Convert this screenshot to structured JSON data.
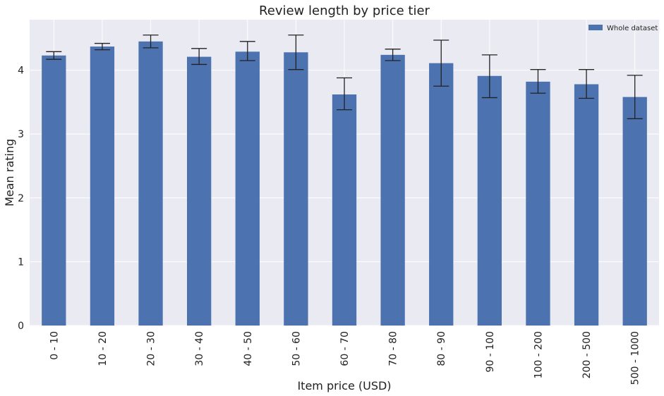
{
  "chart_data": {
    "type": "bar",
    "title": "Review length by price tier",
    "xlabel": "Item price (USD)",
    "ylabel": "Mean rating",
    "categories": [
      "0 - 10",
      "10 - 20",
      "20 - 30",
      "30 - 40",
      "40 - 50",
      "50 - 60",
      "60 - 70",
      "70 - 80",
      "80 - 90",
      "90 - 100",
      "100 - 200",
      "200 - 500",
      "500 - 1000"
    ],
    "series": [
      {
        "name": "Whole dataset",
        "values": [
          4.23,
          4.37,
          4.45,
          4.21,
          4.29,
          4.28,
          3.62,
          4.24,
          4.11,
          3.91,
          3.82,
          3.78,
          3.58
        ],
        "error_low": [
          4.17,
          4.32,
          4.35,
          4.09,
          4.15,
          4.01,
          3.38,
          4.15,
          3.75,
          3.57,
          3.64,
          3.56,
          3.24
        ],
        "error_high": [
          4.29,
          4.42,
          4.55,
          4.34,
          4.45,
          4.55,
          3.88,
          4.33,
          4.47,
          4.24,
          4.01,
          4.01,
          3.92
        ],
        "color": "#4c72b0"
      }
    ],
    "ylim": [
      0,
      4.8
    ],
    "yticks": [
      0,
      1,
      2,
      3,
      4
    ],
    "grid": true,
    "legend_position": "top-right",
    "background_color": "#eaeaf2",
    "grid_color": "#ffffff"
  }
}
